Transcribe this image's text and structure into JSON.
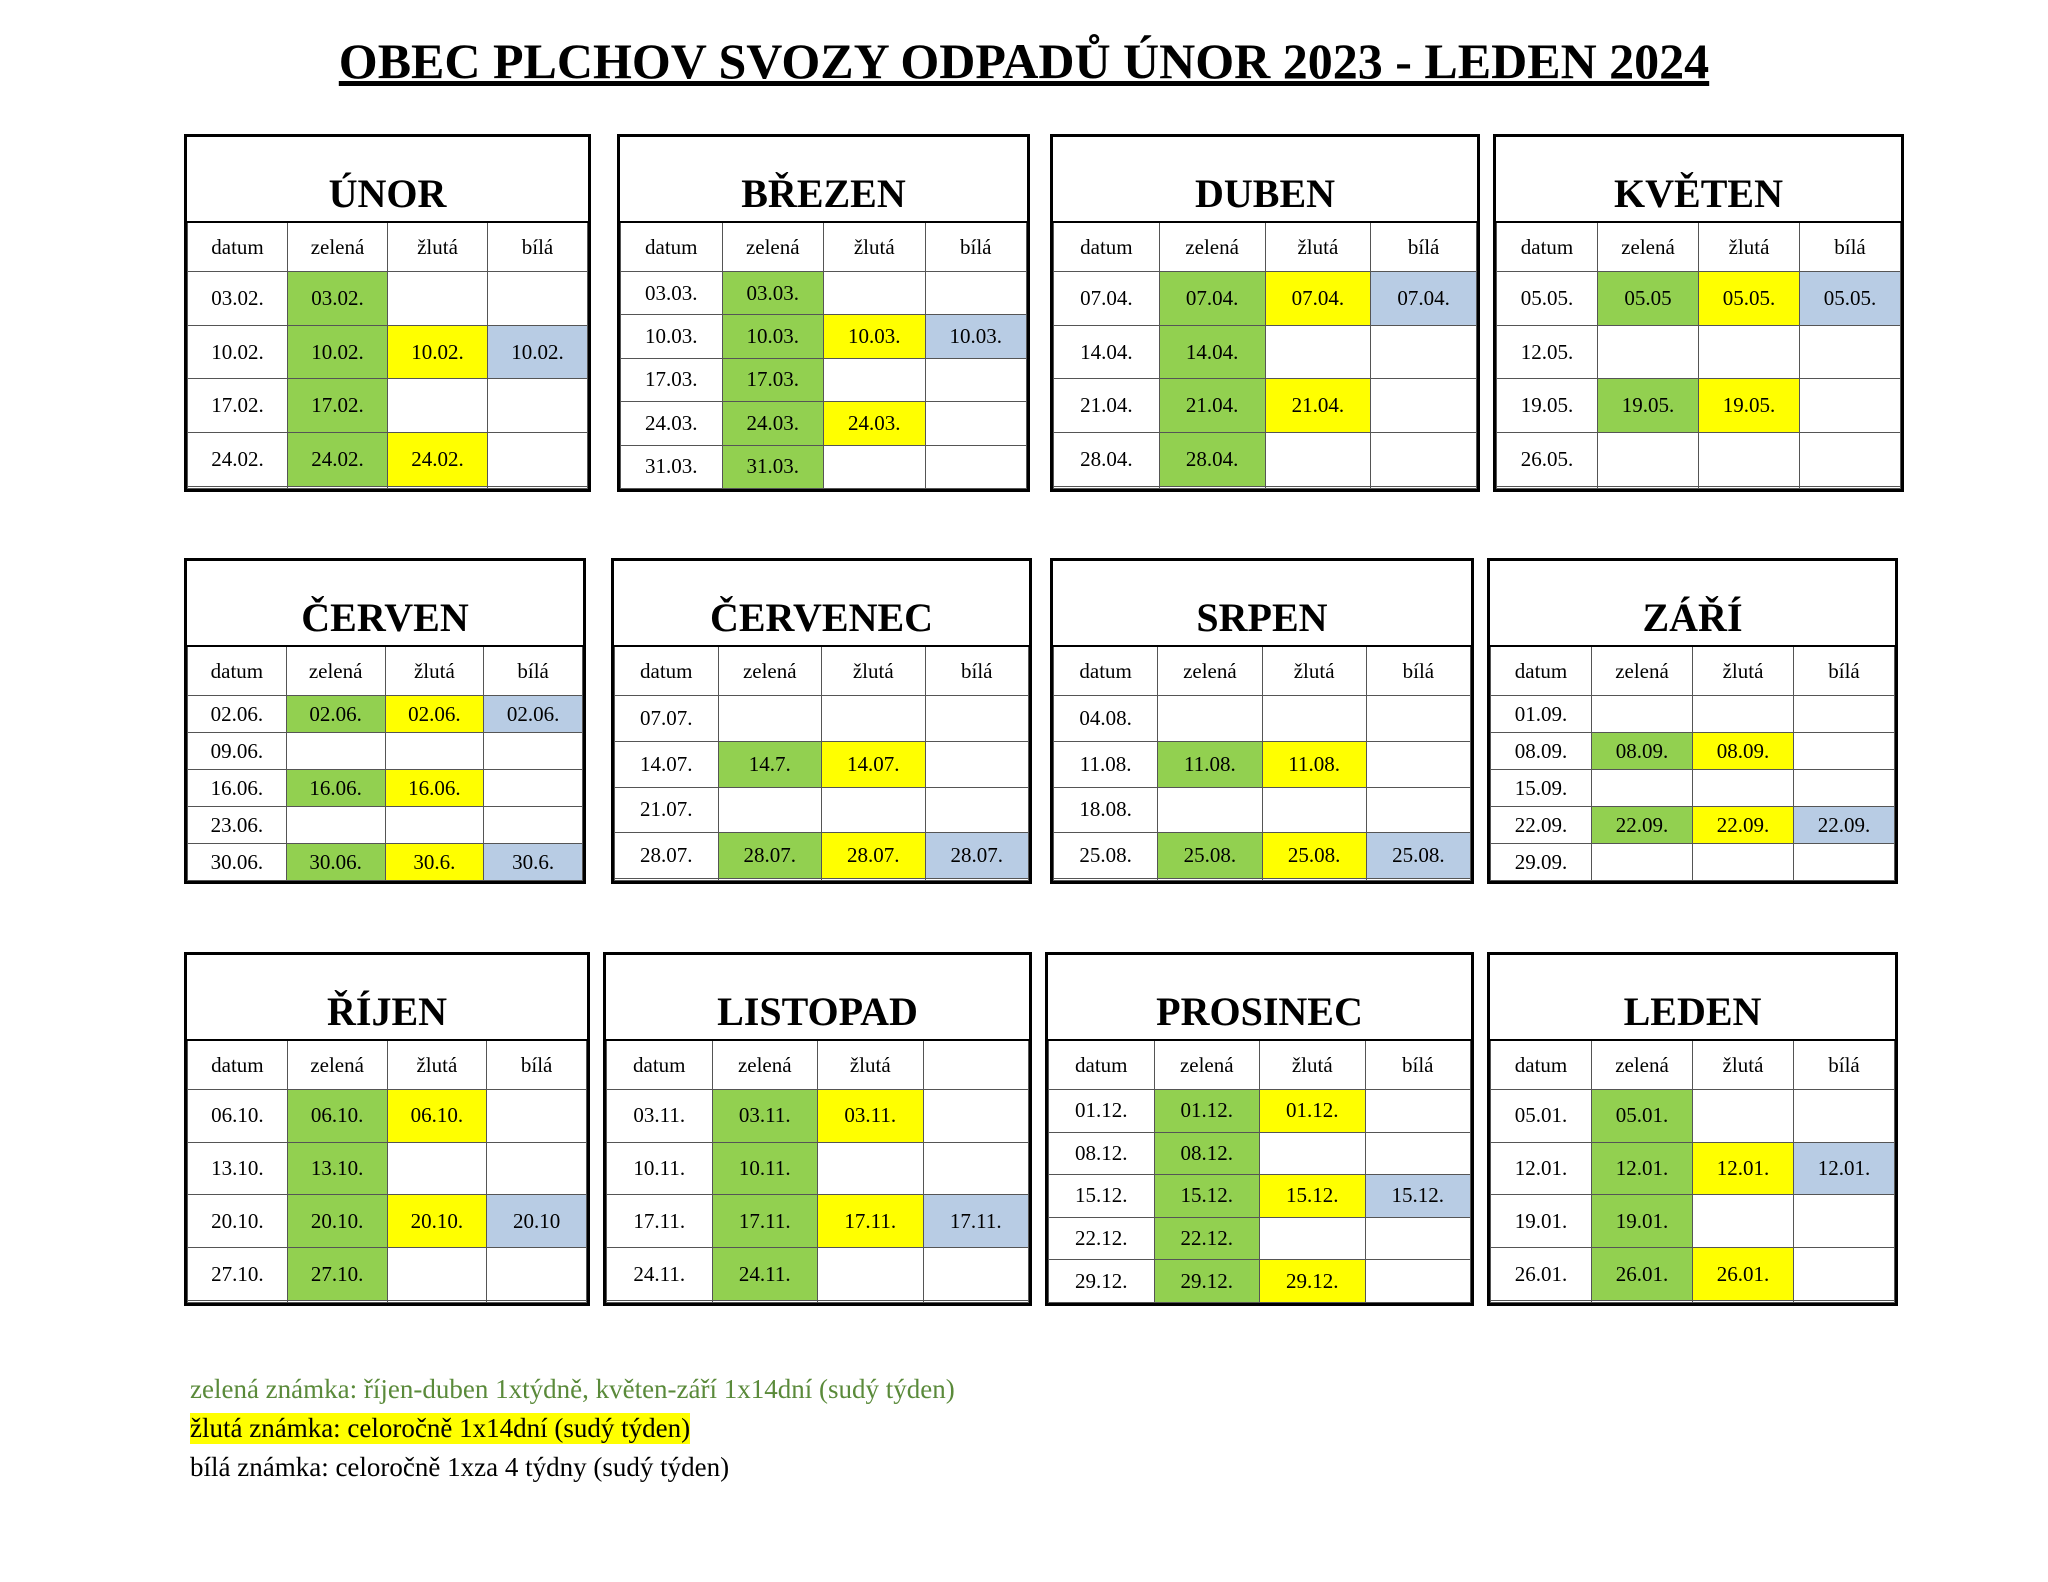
{
  "title": "OBEC PLCHOV SVOZY ODPADŮ ÚNOR 2023 - LEDEN 2024",
  "months": [
    {
      "name": "ÚNOR",
      "headers": [
        "datum",
        "zelená",
        "žlutá",
        "bílá"
      ],
      "rows": [
        [
          "03.02.",
          "03.02.",
          null,
          null
        ],
        [
          "10.02.",
          "10.02.",
          "10.02.",
          "10.02."
        ],
        [
          "17.02.",
          "17.02.",
          null,
          null
        ],
        [
          "24.02.",
          "24.02.",
          "24.02.",
          null
        ],
        [
          null,
          null,
          null,
          null
        ]
      ]
    },
    {
      "name": "BŘEZEN",
      "headers": [
        "datum",
        "zelená",
        "žlutá",
        "bílá"
      ],
      "rows": [
        [
          "03.03.",
          "03.03.",
          null,
          null
        ],
        [
          "10.03.",
          "10.03.",
          "10.03.",
          "10.03."
        ],
        [
          "17.03.",
          "17.03.",
          null,
          null
        ],
        [
          "24.03.",
          "24.03.",
          "24.03.",
          null
        ],
        [
          "31.03.",
          "31.03.",
          null,
          null
        ]
      ]
    },
    {
      "name": "DUBEN",
      "headers": [
        "datum",
        "zelená",
        "žlutá",
        "bílá"
      ],
      "rows": [
        [
          "07.04.",
          "07.04.",
          "07.04.",
          "07.04."
        ],
        [
          "14.04.",
          "14.04.",
          null,
          null
        ],
        [
          "21.04.",
          "21.04.",
          "21.04.",
          null
        ],
        [
          "28.04.",
          "28.04.",
          null,
          null
        ],
        [
          null,
          null,
          null,
          null
        ]
      ]
    },
    {
      "name": "KVĚTEN",
      "headers": [
        "datum",
        "zelená",
        "žlutá",
        "bílá"
      ],
      "rows": [
        [
          "05.05.",
          "05.05",
          "05.05.",
          "05.05."
        ],
        [
          "12.05.",
          null,
          null,
          null
        ],
        [
          "19.05.",
          "19.05.",
          "19.05.",
          null
        ],
        [
          "26.05.",
          null,
          null,
          null
        ],
        [
          null,
          null,
          null,
          null
        ]
      ]
    },
    {
      "name": "ČERVEN",
      "headers": [
        "datum",
        "zelená",
        "žlutá",
        "bílá"
      ],
      "rows": [
        [
          "02.06.",
          "02.06.",
          "02.06.",
          "02.06."
        ],
        [
          "09.06.",
          null,
          null,
          null
        ],
        [
          "16.06.",
          "16.06.",
          "16.06.",
          null
        ],
        [
          "23.06.",
          null,
          null,
          null
        ],
        [
          "30.06.",
          "30.06.",
          "30.6.",
          "30.6."
        ]
      ]
    },
    {
      "name": "ČERVENEC",
      "headers": [
        "datum",
        "zelená",
        "žlutá",
        "bílá"
      ],
      "rows": [
        [
          "07.07.",
          null,
          null,
          null
        ],
        [
          "14.07.",
          "14.7.",
          "14.07.",
          null
        ],
        [
          "21.07.",
          null,
          null,
          null
        ],
        [
          "28.07.",
          "28.07.",
          "28.07.",
          "28.07."
        ],
        [
          null,
          null,
          null,
          null
        ]
      ]
    },
    {
      "name": "SRPEN",
      "headers": [
        "datum",
        "zelená",
        "žlutá",
        "bílá"
      ],
      "rows": [
        [
          "04.08.",
          null,
          null,
          null
        ],
        [
          "11.08.",
          "11.08.",
          "11.08.",
          null
        ],
        [
          "18.08.",
          null,
          null,
          null
        ],
        [
          "25.08.",
          "25.08.",
          "25.08.",
          "25.08."
        ],
        [
          null,
          null,
          null,
          null
        ]
      ]
    },
    {
      "name": "ZÁŘÍ",
      "headers": [
        "datum",
        "zelená",
        "žlutá",
        "bílá"
      ],
      "rows": [
        [
          "01.09.",
          null,
          null,
          null
        ],
        [
          "08.09.",
          "08.09.",
          "08.09.",
          null
        ],
        [
          "15.09.",
          null,
          null,
          null
        ],
        [
          "22.09.",
          "22.09.",
          "22.09.",
          "22.09."
        ],
        [
          "29.09.",
          null,
          null,
          null
        ]
      ]
    },
    {
      "name": "ŘÍJEN",
      "headers": [
        "datum",
        "zelená",
        "žlutá",
        "bílá"
      ],
      "rows": [
        [
          "06.10.",
          "06.10.",
          "06.10.",
          null
        ],
        [
          "13.10.",
          "13.10.",
          null,
          null
        ],
        [
          "20.10.",
          "20.10.",
          "20.10.",
          "20.10"
        ],
        [
          "27.10.",
          "27.10.",
          null,
          null
        ],
        [
          null,
          null,
          null,
          null
        ]
      ]
    },
    {
      "name": "LISTOPAD",
      "headers": [
        "datum",
        "zelená",
        "žlutá",
        null
      ],
      "rows": [
        [
          "03.11.",
          "03.11.",
          "03.11.",
          null
        ],
        [
          "10.11.",
          "10.11.",
          null,
          null
        ],
        [
          "17.11.",
          "17.11.",
          "17.11.",
          "17.11."
        ],
        [
          "24.11.",
          "24.11.",
          null,
          null
        ],
        [
          null,
          null,
          null,
          null
        ]
      ]
    },
    {
      "name": "PROSINEC",
      "headers": [
        "datum",
        "zelená",
        "žlutá",
        "bílá"
      ],
      "rows": [
        [
          "01.12.",
          "01.12.",
          "01.12.",
          null
        ],
        [
          "08.12.",
          "08.12.",
          null,
          null
        ],
        [
          "15.12.",
          "15.12.",
          "15.12.",
          "15.12."
        ],
        [
          "22.12.",
          "22.12.",
          null,
          null
        ],
        [
          "29.12.",
          "29.12.",
          "29.12.",
          null
        ]
      ]
    },
    {
      "name": "LEDEN",
      "headers": [
        "datum",
        "zelená",
        "žlutá",
        "bílá"
      ],
      "rows": [
        [
          "05.01.",
          "05.01.",
          null,
          null
        ],
        [
          "12.01.",
          "12.01.",
          "12.01.",
          "12.01."
        ],
        [
          "19.01.",
          "19.01.",
          null,
          null
        ],
        [
          "26.01.",
          "26.01.",
          "26.01.",
          null
        ],
        [
          null,
          null,
          null,
          null
        ]
      ]
    }
  ],
  "legend": [
    "zelená známka: říjen-duben 1xtýdně, květen-září 1x14dní (sudý týden)",
    "žlutá známka: celoročně 1x14dní (sudý týden)",
    "bílá známka: celoročně 1xza 4 týdny (sudý týden)"
  ]
}
